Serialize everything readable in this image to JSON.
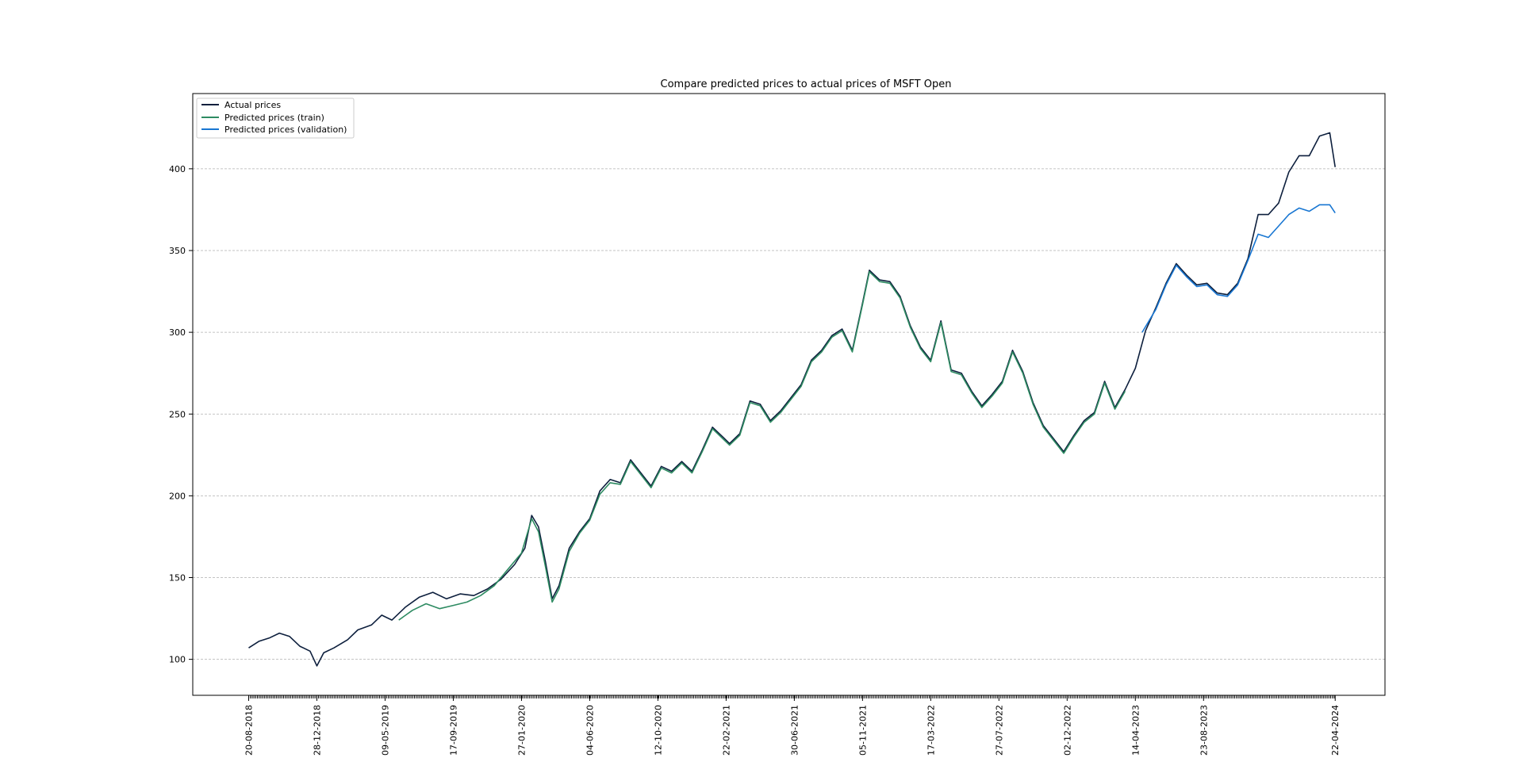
{
  "chart_data": {
    "type": "line",
    "title": "Compare predicted prices to actual prices of MSFT Open",
    "xlabel": "",
    "ylabel": "",
    "x_tick_labels": [
      "20-08-2018",
      "28-12-2018",
      "09-05-2019",
      "17-09-2019",
      "27-01-2020",
      "04-06-2020",
      "12-10-2020",
      "22-02-2021",
      "30-06-2021",
      "05-11-2021",
      "17-03-2022",
      "27-07-2022",
      "02-12-2022",
      "14-04-2023",
      "23-08-2023",
      "22-04-2024"
    ],
    "x_tick_index": [
      0,
      1,
      2,
      3,
      4,
      5,
      6,
      7,
      8,
      9,
      10,
      11,
      12,
      13,
      14,
      15.93
    ],
    "y_ticks": [
      100,
      150,
      200,
      250,
      300,
      350,
      400
    ],
    "ylim": [
      78,
      446
    ],
    "xlim": [
      -0.82,
      16.66
    ],
    "grid": "horizontal-dashed",
    "legend_position": "top-left",
    "colors": {
      "actual": "#0d1f3d",
      "train": "#2e8b62",
      "validation": "#1876d2",
      "grid": "#b0b0b0"
    },
    "series": [
      {
        "name": "Actual prices",
        "color": "#0d1f3d",
        "points": [
          [
            0,
            107
          ],
          [
            0.15,
            111
          ],
          [
            0.3,
            113
          ],
          [
            0.45,
            116
          ],
          [
            0.6,
            114
          ],
          [
            0.75,
            108
          ],
          [
            0.9,
            105
          ],
          [
            1.0,
            96
          ],
          [
            1.1,
            104
          ],
          [
            1.25,
            107
          ],
          [
            1.45,
            112
          ],
          [
            1.6,
            118
          ],
          [
            1.8,
            121
          ],
          [
            1.95,
            127
          ],
          [
            2.1,
            124
          ],
          [
            2.3,
            132
          ],
          [
            2.5,
            138
          ],
          [
            2.7,
            141
          ],
          [
            2.9,
            137
          ],
          [
            3.1,
            140
          ],
          [
            3.3,
            139
          ],
          [
            3.5,
            143
          ],
          [
            3.7,
            149
          ],
          [
            3.9,
            158
          ],
          [
            4.05,
            168
          ],
          [
            4.15,
            188
          ],
          [
            4.25,
            181
          ],
          [
            4.35,
            160
          ],
          [
            4.45,
            137
          ],
          [
            4.55,
            145
          ],
          [
            4.7,
            168
          ],
          [
            4.85,
            178
          ],
          [
            5.0,
            186
          ],
          [
            5.15,
            203
          ],
          [
            5.3,
            210
          ],
          [
            5.45,
            208
          ],
          [
            5.6,
            222
          ],
          [
            5.75,
            214
          ],
          [
            5.9,
            206
          ],
          [
            6.05,
            218
          ],
          [
            6.2,
            215
          ],
          [
            6.35,
            221
          ],
          [
            6.5,
            215
          ],
          [
            6.65,
            228
          ],
          [
            6.8,
            242
          ],
          [
            6.95,
            236
          ],
          [
            7.05,
            232
          ],
          [
            7.2,
            238
          ],
          [
            7.35,
            258
          ],
          [
            7.5,
            256
          ],
          [
            7.65,
            246
          ],
          [
            7.8,
            252
          ],
          [
            7.95,
            260
          ],
          [
            8.1,
            268
          ],
          [
            8.25,
            283
          ],
          [
            8.4,
            289
          ],
          [
            8.55,
            298
          ],
          [
            8.7,
            302
          ],
          [
            8.85,
            289
          ],
          [
            9.0,
            318
          ],
          [
            9.1,
            338
          ],
          [
            9.25,
            332
          ],
          [
            9.4,
            331
          ],
          [
            9.55,
            322
          ],
          [
            9.7,
            304
          ],
          [
            9.85,
            291
          ],
          [
            10.0,
            283
          ],
          [
            10.15,
            307
          ],
          [
            10.3,
            277
          ],
          [
            10.45,
            275
          ],
          [
            10.6,
            264
          ],
          [
            10.75,
            255
          ],
          [
            10.9,
            262
          ],
          [
            11.05,
            270
          ],
          [
            11.2,
            289
          ],
          [
            11.35,
            276
          ],
          [
            11.5,
            257
          ],
          [
            11.65,
            243
          ],
          [
            11.8,
            235
          ],
          [
            11.95,
            227
          ],
          [
            12.1,
            237
          ],
          [
            12.25,
            246
          ],
          [
            12.4,
            251
          ],
          [
            12.55,
            270
          ],
          [
            12.7,
            254
          ],
          [
            12.85,
            265
          ],
          [
            13.0,
            278
          ],
          [
            13.15,
            301
          ],
          [
            13.3,
            315
          ],
          [
            13.45,
            330
          ],
          [
            13.6,
            342
          ],
          [
            13.75,
            335
          ],
          [
            13.9,
            329
          ],
          [
            14.05,
            330
          ],
          [
            14.2,
            324
          ],
          [
            14.35,
            323
          ],
          [
            14.5,
            330
          ],
          [
            14.65,
            345
          ],
          [
            14.8,
            372
          ],
          [
            14.95,
            372
          ],
          [
            15.1,
            379
          ],
          [
            15.25,
            398
          ],
          [
            15.4,
            408
          ],
          [
            15.55,
            408
          ],
          [
            15.7,
            420
          ],
          [
            15.85,
            422
          ],
          [
            15.93,
            401
          ]
        ]
      },
      {
        "name": "Predicted prices (train)",
        "color": "#2e8b62",
        "points": [
          [
            2.2,
            124
          ],
          [
            2.4,
            130
          ],
          [
            2.6,
            134
          ],
          [
            2.8,
            131
          ],
          [
            3.0,
            133
          ],
          [
            3.2,
            135
          ],
          [
            3.4,
            139
          ],
          [
            3.6,
            145
          ],
          [
            3.8,
            155
          ],
          [
            4.0,
            165
          ],
          [
            4.15,
            186
          ],
          [
            4.25,
            178
          ],
          [
            4.35,
            157
          ],
          [
            4.45,
            135
          ],
          [
            4.55,
            143
          ],
          [
            4.7,
            166
          ],
          [
            4.85,
            177
          ],
          [
            5.0,
            185
          ],
          [
            5.15,
            201
          ],
          [
            5.3,
            208
          ],
          [
            5.45,
            207
          ],
          [
            5.6,
            221
          ],
          [
            5.75,
            213
          ],
          [
            5.9,
            205
          ],
          [
            6.05,
            217
          ],
          [
            6.2,
            214
          ],
          [
            6.35,
            220
          ],
          [
            6.5,
            214
          ],
          [
            6.65,
            227
          ],
          [
            6.8,
            241
          ],
          [
            6.95,
            235
          ],
          [
            7.05,
            231
          ],
          [
            7.2,
            237
          ],
          [
            7.35,
            257
          ],
          [
            7.5,
            255
          ],
          [
            7.65,
            245
          ],
          [
            7.8,
            251
          ],
          [
            7.95,
            259
          ],
          [
            8.1,
            267
          ],
          [
            8.25,
            282
          ],
          [
            8.4,
            288
          ],
          [
            8.55,
            297
          ],
          [
            8.7,
            301
          ],
          [
            8.85,
            288
          ],
          [
            9.0,
            317
          ],
          [
            9.1,
            337
          ],
          [
            9.25,
            331
          ],
          [
            9.4,
            330
          ],
          [
            9.55,
            321
          ],
          [
            9.7,
            303
          ],
          [
            9.85,
            290
          ],
          [
            10.0,
            282
          ],
          [
            10.15,
            306
          ],
          [
            10.3,
            276
          ],
          [
            10.45,
            274
          ],
          [
            10.6,
            263
          ],
          [
            10.75,
            254
          ],
          [
            10.9,
            261
          ],
          [
            11.05,
            269
          ],
          [
            11.2,
            288
          ],
          [
            11.35,
            275
          ],
          [
            11.5,
            256
          ],
          [
            11.65,
            242
          ],
          [
            11.8,
            234
          ],
          [
            11.95,
            226
          ],
          [
            12.1,
            236
          ],
          [
            12.25,
            245
          ],
          [
            12.4,
            250
          ],
          [
            12.55,
            269
          ],
          [
            12.7,
            253
          ],
          [
            12.85,
            264
          ]
        ]
      },
      {
        "name": "Predicted prices (validation)",
        "color": "#1876d2",
        "points": [
          [
            13.1,
            300
          ],
          [
            13.3,
            314
          ],
          [
            13.45,
            329
          ],
          [
            13.6,
            341
          ],
          [
            13.75,
            334
          ],
          [
            13.9,
            328
          ],
          [
            14.05,
            329
          ],
          [
            14.2,
            323
          ],
          [
            14.35,
            322
          ],
          [
            14.5,
            329
          ],
          [
            14.65,
            344
          ],
          [
            14.8,
            360
          ],
          [
            14.95,
            358
          ],
          [
            15.1,
            365
          ],
          [
            15.25,
            372
          ],
          [
            15.4,
            376
          ],
          [
            15.55,
            374
          ],
          [
            15.7,
            378
          ],
          [
            15.85,
            378
          ],
          [
            15.93,
            373
          ]
        ]
      }
    ]
  }
}
